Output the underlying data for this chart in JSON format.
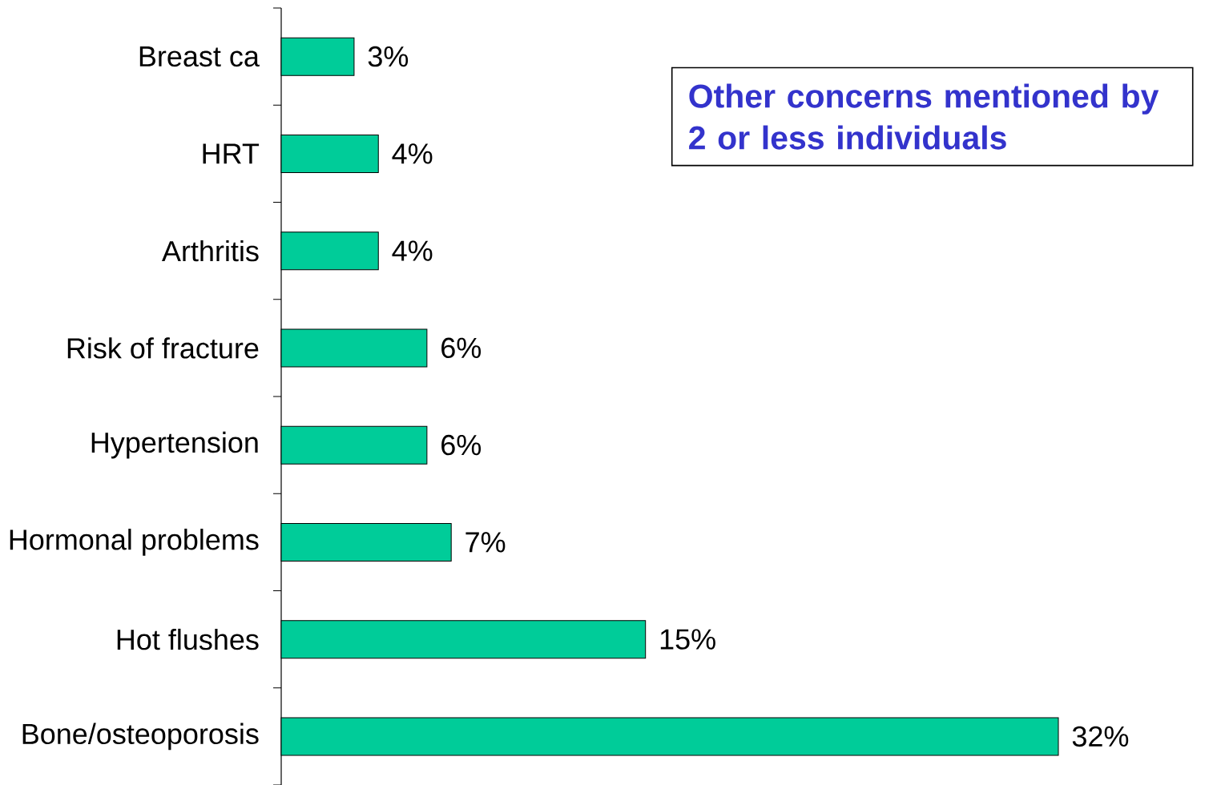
{
  "chart_data": {
    "type": "bar",
    "orientation": "horizontal",
    "categories": [
      "Breast ca",
      "HRT",
      "Arthritis",
      "Risk of fracture",
      "Hypertension",
      "Hormonal problems",
      "Hot flushes",
      "Bone/osteoporosis"
    ],
    "values": [
      3,
      4,
      4,
      6,
      6,
      7,
      15,
      32
    ],
    "value_labels": [
      "3%",
      "4%",
      "4%",
      "6%",
      "6%",
      "7%",
      "15%",
      "32%"
    ],
    "color": "#00cc99",
    "annotations": [
      "Other concerns mentioned by 2 or less individuals"
    ]
  }
}
